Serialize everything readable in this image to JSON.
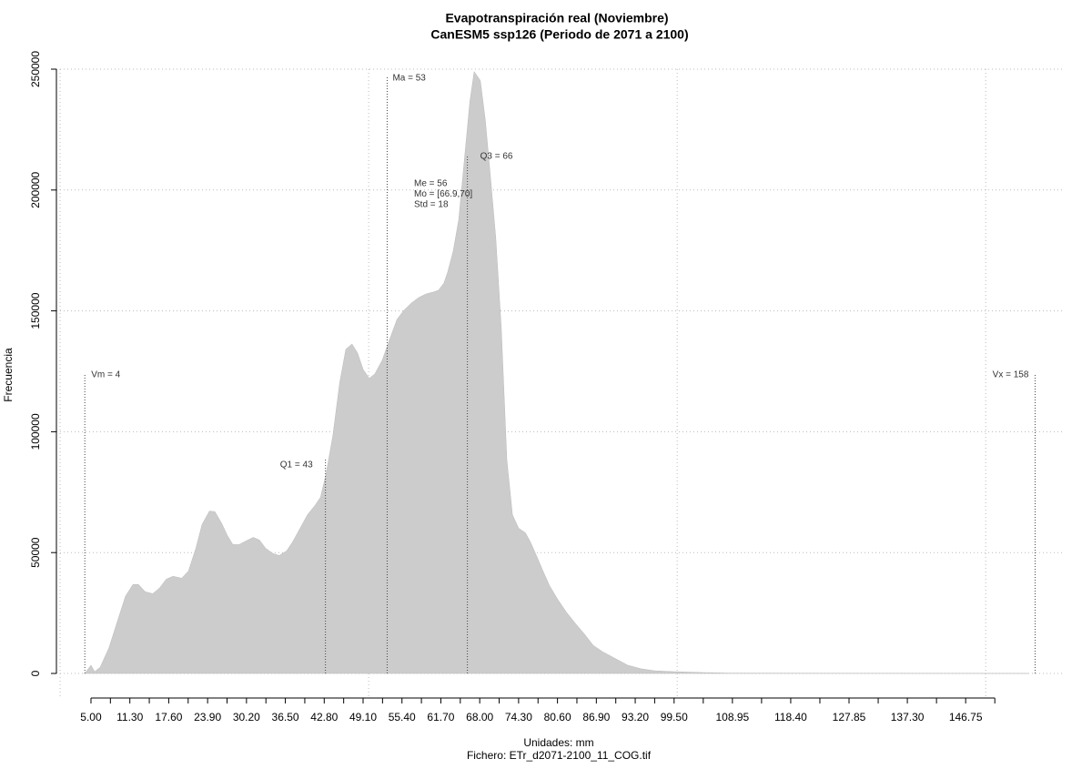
{
  "chart_data": {
    "type": "area",
    "title": "Evapotranspiración real (Noviembre)",
    "subtitle": "CanESM5 ssp126 (Periodo de 2071 a 2100)",
    "x_label": "Unidades: mm",
    "file_label": "Fichero: ETr_d2071-2100_11_COG.tif",
    "y_label": "Frecuencia",
    "series": [
      {
        "name": "Frecuencia",
        "color": "#cccccc",
        "x": [
          4.0,
          5.0,
          5.6,
          6.5,
          7.9,
          9.4,
          10.6,
          11.8,
          12.7,
          13.8,
          15.0,
          16.1,
          17.2,
          18.3,
          19.7,
          20.8,
          22.0,
          23.0,
          24.2,
          25.1,
          26.2,
          27.1,
          28.0,
          29.0,
          30.1,
          31.3,
          32.3,
          33.3,
          34.5,
          35.5,
          36.7,
          37.7,
          38.9,
          40.1,
          41.3,
          42.2,
          43.1,
          44.2,
          45.3,
          46.3,
          47.3,
          48.2,
          49.1,
          50.1,
          51.0,
          52.2,
          53.4,
          54.6,
          55.7,
          56.9,
          58.1,
          59.3,
          60.5,
          61.3,
          62.2,
          62.8,
          63.7,
          64.6,
          65.5,
          66.4,
          67.1,
          68.1,
          68.9,
          69.7,
          70.6,
          71.5,
          72.4,
          73.3,
          74.3,
          75.4,
          76.2,
          77.3,
          78.3,
          79.3,
          80.5,
          82.0,
          83.5,
          85.0,
          86.4,
          87.9,
          89.8,
          92.0,
          94.2,
          96.4,
          99.4,
          103.8,
          108.2,
          156.9
        ],
        "values": [
          0,
          3400,
          750,
          2600,
          10500,
          22500,
          32000,
          36800,
          36800,
          33800,
          33000,
          35300,
          39000,
          40200,
          39400,
          42400,
          51800,
          61600,
          67200,
          66900,
          62000,
          57100,
          53300,
          53300,
          54800,
          56300,
          55200,
          51800,
          49600,
          48800,
          50700,
          54500,
          60100,
          65700,
          69500,
          72900,
          82600,
          98400,
          120200,
          134100,
          136300,
          132600,
          125800,
          122100,
          123900,
          129600,
          138200,
          146500,
          150200,
          153200,
          155500,
          157000,
          157800,
          158500,
          161500,
          166000,
          174700,
          187800,
          212200,
          236600,
          249000,
          245300,
          229100,
          206600,
          180300,
          142700,
          88300,
          65700,
          60100,
          58200,
          54500,
          48100,
          42100,
          36400,
          31200,
          25500,
          20700,
          16200,
          11600,
          9000,
          6400,
          3400,
          1900,
          1100,
          750,
          400,
          150,
          0
        ]
      }
    ],
    "xlim": [
      -0.6,
      162.8
    ],
    "ylim": [
      0,
      250000
    ],
    "yticks": [
      0,
      50000,
      100000,
      150000,
      200000,
      250000
    ],
    "xticks": [
      {
        "value": 5,
        "label": "5.00"
      },
      {
        "value": 11.3,
        "label": "11.30"
      },
      {
        "value": 17.6,
        "label": "17.60"
      },
      {
        "value": 23.9,
        "label": "23.90"
      },
      {
        "value": 30.2,
        "label": "30.20"
      },
      {
        "value": 36.5,
        "label": "36.50"
      },
      {
        "value": 42.8,
        "label": "42.80"
      },
      {
        "value": 49.1,
        "label": "49.10"
      },
      {
        "value": 55.4,
        "label": "55.40"
      },
      {
        "value": 61.7,
        "label": "61.70"
      },
      {
        "value": 68,
        "label": "68.00"
      },
      {
        "value": 74.3,
        "label": "74.30"
      },
      {
        "value": 80.6,
        "label": "80.60"
      },
      {
        "value": 86.9,
        "label": "86.90"
      },
      {
        "value": 93.2,
        "label": "93.20"
      },
      {
        "value": 99.5,
        "label": "99.50"
      },
      {
        "value": 108.95,
        "label": "108.95"
      },
      {
        "value": 118.4,
        "label": "118.40"
      },
      {
        "value": 127.85,
        "label": "127.85"
      },
      {
        "value": 137.3,
        "label": "137.30"
      },
      {
        "value": 146.75,
        "label": "146.75"
      }
    ],
    "xminor_ticks": [
      8.15,
      14.45,
      20.75,
      27.05,
      33.35,
      39.65,
      45.95,
      52.25,
      58.55,
      64.85,
      71.15,
      77.45,
      83.75,
      90.05,
      96.35,
      104.225,
      113.675,
      123.125,
      132.575,
      142.025,
      151.475
    ],
    "xgrid": [
      0,
      50,
      100,
      150
    ],
    "grid": true,
    "annotations": [
      {
        "text": "Vm = 4",
        "x": 4
      },
      {
        "text": "Q1 = 43",
        "x": 43
      },
      {
        "text": "Ma = 53",
        "x": 53
      },
      {
        "text": "Q3 = 66",
        "x": 66
      },
      {
        "text": "Vx = 158",
        "x": 158
      }
    ],
    "stats_text": [
      "Me = 56",
      "Mo = [66.9,70]",
      "Std = 18"
    ]
  }
}
